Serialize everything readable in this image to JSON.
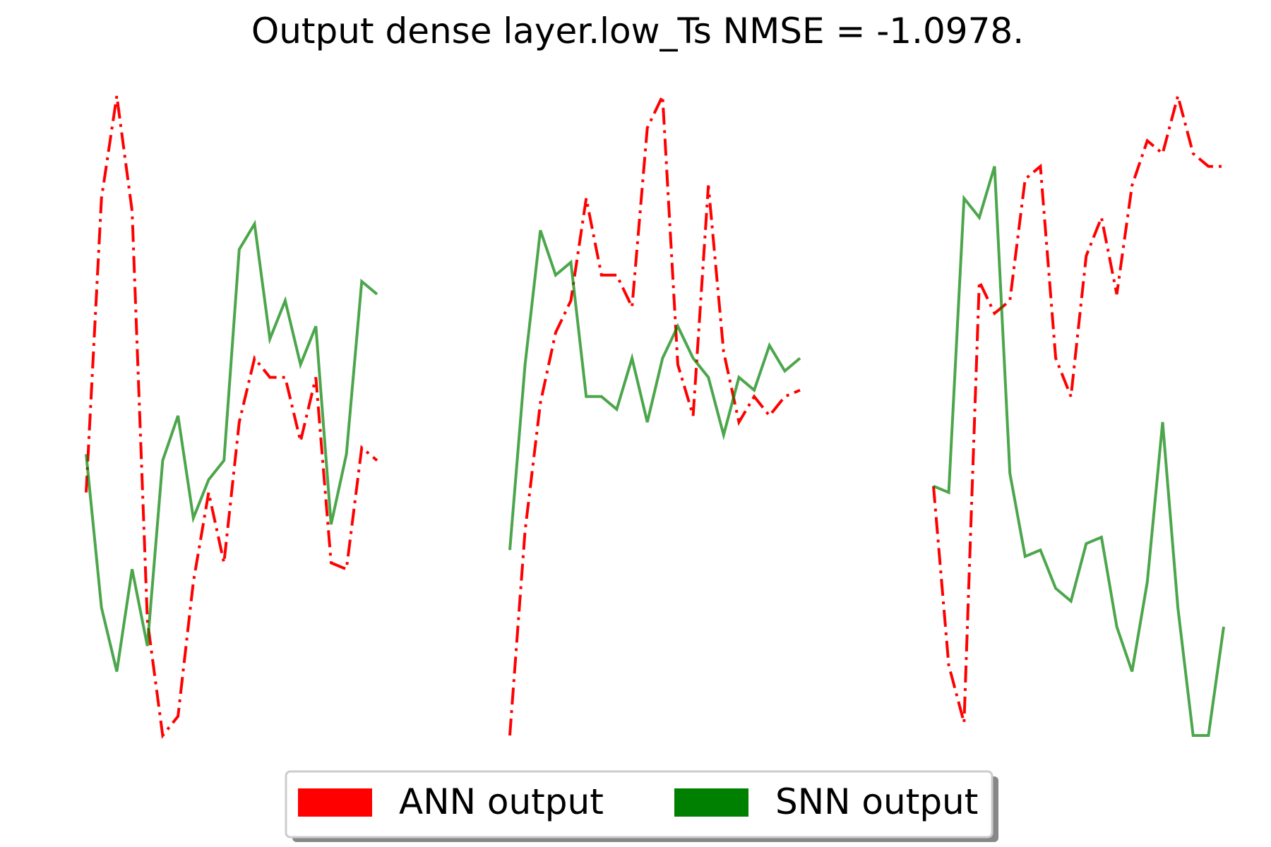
{
  "chart_data": {
    "type": "line",
    "title": "Output dense layer.low_Ts NMSE = -1.0978.",
    "grid": false,
    "axes_visible": false,
    "legend_placement": "bottom-center",
    "legend": [
      {
        "label": "ANN output",
        "color": "#ff0000"
      },
      {
        "label": "SNN output",
        "color": "#008000"
      }
    ],
    "panels": [
      {
        "x": [
          0,
          1,
          2,
          3,
          4,
          5,
          6,
          7,
          8,
          9,
          10,
          11,
          12,
          13,
          14,
          15,
          16,
          17,
          18,
          19
        ],
        "ylim": [
          0,
          1
        ],
        "series": [
          {
            "name": "ANN output",
            "color": "#ff0000",
            "linestyle": "dashdot",
            "values": [
              0.38,
              0.84,
              1.0,
              0.82,
              0.18,
              0.0,
              0.03,
              0.24,
              0.38,
              0.27,
              0.49,
              0.59,
              0.56,
              0.56,
              0.46,
              0.56,
              0.27,
              0.26,
              0.45,
              0.43
            ]
          },
          {
            "name": "SNN output",
            "color": "#008000",
            "linestyle": "solid",
            "values": [
              0.44,
              0.2,
              0.1,
              0.26,
              0.14,
              0.43,
              0.5,
              0.34,
              0.4,
              0.43,
              0.76,
              0.8,
              0.62,
              0.68,
              0.58,
              0.64,
              0.33,
              0.44,
              0.71,
              0.69
            ]
          }
        ]
      },
      {
        "x": [
          0,
          1,
          2,
          3,
          4,
          5,
          6,
          7,
          8,
          9,
          10,
          11,
          12,
          13,
          14,
          15,
          16,
          17,
          18,
          19
        ],
        "ylim": [
          0,
          1
        ],
        "series": [
          {
            "name": "ANN output",
            "color": "#ff0000",
            "linestyle": "dashdot",
            "values": [
              0.0,
              0.32,
              0.52,
              0.63,
              0.68,
              0.84,
              0.72,
              0.72,
              0.67,
              0.95,
              1.0,
              0.58,
              0.5,
              0.86,
              0.6,
              0.49,
              0.53,
              0.5,
              0.53,
              0.54
            ]
          },
          {
            "name": "SNN output",
            "color": "#008000",
            "linestyle": "solid",
            "values": [
              0.29,
              0.58,
              0.79,
              0.72,
              0.74,
              0.53,
              0.53,
              0.51,
              0.59,
              0.49,
              0.59,
              0.64,
              0.59,
              0.56,
              0.47,
              0.56,
              0.54,
              0.61,
              0.57,
              0.59
            ]
          }
        ]
      },
      {
        "x": [
          0,
          1,
          2,
          3,
          4,
          5,
          6,
          7,
          8,
          9,
          10,
          11,
          12,
          13,
          14,
          15,
          16,
          17,
          18,
          19
        ],
        "ylim": [
          0,
          1
        ],
        "series": [
          {
            "name": "ANN output",
            "color": "#ff0000",
            "linestyle": "dashdot",
            "values": [
              0.39,
              0.11,
              0.02,
              0.71,
              0.66,
              0.68,
              0.87,
              0.89,
              0.59,
              0.53,
              0.75,
              0.81,
              0.69,
              0.86,
              0.93,
              0.91,
              1.0,
              0.91,
              0.89,
              0.89
            ]
          },
          {
            "name": "SNN output",
            "color": "#008000",
            "linestyle": "solid",
            "values": [
              0.39,
              0.38,
              0.84,
              0.81,
              0.89,
              0.41,
              0.28,
              0.29,
              0.23,
              0.21,
              0.3,
              0.31,
              0.17,
              0.1,
              0.24,
              0.49,
              0.2,
              0.0,
              0.0,
              0.17
            ]
          }
        ]
      }
    ]
  }
}
